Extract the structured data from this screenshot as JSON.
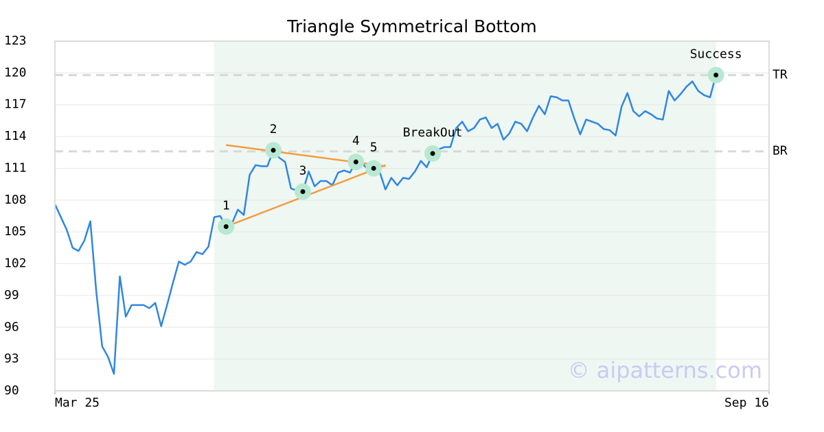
{
  "chart_data": {
    "type": "line",
    "title": "Triangle Symmetrical Bottom",
    "watermark": "© aipatterns.com",
    "color": "#2f86e0",
    "x": [
      0,
      1,
      2,
      3,
      4,
      5,
      6,
      7,
      8,
      9,
      10,
      11,
      12,
      13,
      14,
      15,
      16,
      17,
      18,
      19,
      20,
      21,
      22,
      23,
      24,
      25,
      26,
      27,
      28,
      29,
      30,
      31,
      32,
      33,
      34,
      35,
      36,
      37,
      38,
      39,
      40,
      41,
      42,
      43,
      44,
      45,
      46,
      47,
      48,
      49,
      50,
      51,
      52,
      53,
      54,
      55,
      56,
      57,
      58,
      59,
      60,
      61,
      62,
      63,
      64,
      65,
      66,
      67,
      68,
      69,
      70,
      71,
      72,
      73,
      74,
      75,
      76,
      77,
      78,
      79,
      80,
      81,
      82,
      83,
      84,
      85,
      86,
      87,
      88,
      89,
      90,
      91,
      92,
      93,
      94,
      95,
      96,
      97,
      98,
      99,
      100,
      101,
      102,
      103,
      104,
      105,
      106,
      107,
      108,
      109,
      110,
      111,
      112,
      113
    ],
    "values": [
      107.6,
      106.4,
      105.2,
      103.5,
      103.2,
      104.2,
      106.0,
      99.4,
      94.2,
      93.2,
      91.6,
      100.8,
      97.0,
      98.1,
      98.1,
      98.1,
      97.8,
      98.3,
      96.1,
      98.1,
      100.2,
      102.2,
      101.9,
      102.2,
      103.1,
      102.9,
      103.6,
      106.4,
      106.5,
      105.5,
      105.8,
      107.1,
      106.6,
      110.4,
      111.3,
      111.2,
      111.2,
      112.7,
      112.0,
      111.6,
      109.1,
      108.9,
      108.8,
      110.7,
      109.3,
      109.8,
      109.8,
      109.4,
      110.6,
      110.8,
      110.6,
      111.6,
      111.5,
      110.9,
      111.0,
      110.7,
      109.0,
      110.1,
      109.4,
      110.1,
      110.0,
      110.7,
      111.7,
      111.1,
      112.4,
      112.8,
      113.0,
      113.0,
      114.8,
      115.4,
      114.5,
      114.8,
      115.6,
      115.8,
      114.8,
      115.2,
      113.7,
      114.3,
      115.4,
      115.2,
      114.5,
      115.8,
      116.9,
      116.1,
      117.8,
      117.7,
      117.4,
      117.4,
      115.7,
      114.2,
      115.6,
      115.4,
      115.2,
      114.7,
      114.6,
      114.1,
      116.8,
      118.1,
      116.4,
      115.9,
      116.4,
      116.1,
      115.7,
      115.6,
      118.3,
      117.4,
      118.0,
      118.7,
      119.2,
      118.3,
      117.9,
      117.7,
      119.8,
      120.2
    ],
    "xlim": [
      0,
      121
    ],
    "xticks": [
      {
        "value": 0,
        "label": "Mar 25"
      },
      {
        "value": 121,
        "label": "Sep 16"
      }
    ],
    "ylim": [
      90,
      123
    ],
    "yticks": [
      90,
      93,
      96,
      99,
      102,
      105,
      108,
      111,
      114,
      117,
      120,
      123
    ],
    "grid": true,
    "pattern_range": [
      27,
      112
    ],
    "pattern_color": "#eef7f2",
    "points": [
      {
        "label": "1",
        "x": 29,
        "y": 105.5
      },
      {
        "label": "2",
        "x": 37,
        "y": 112.7
      },
      {
        "label": "3",
        "x": 42,
        "y": 108.8
      },
      {
        "label": "4",
        "x": 51,
        "y": 111.6
      },
      {
        "label": "5",
        "x": 54,
        "y": 111.0
      },
      {
        "label": "BreakOut",
        "x": 64,
        "y": 112.4
      },
      {
        "label": "Success",
        "x": 112,
        "y": 119.8
      }
    ],
    "trend_color": "#f59a3e",
    "trend_lines": [
      {
        "x": [
          29,
          56
        ],
        "y": [
          113.2,
          111.2
        ]
      },
      {
        "x": [
          29,
          56
        ],
        "y": [
          105.5,
          111.3
        ]
      }
    ],
    "levels": [
      {
        "label": "TR",
        "value": 119.8
      },
      {
        "label": "BR",
        "value": 112.6
      }
    ]
  }
}
